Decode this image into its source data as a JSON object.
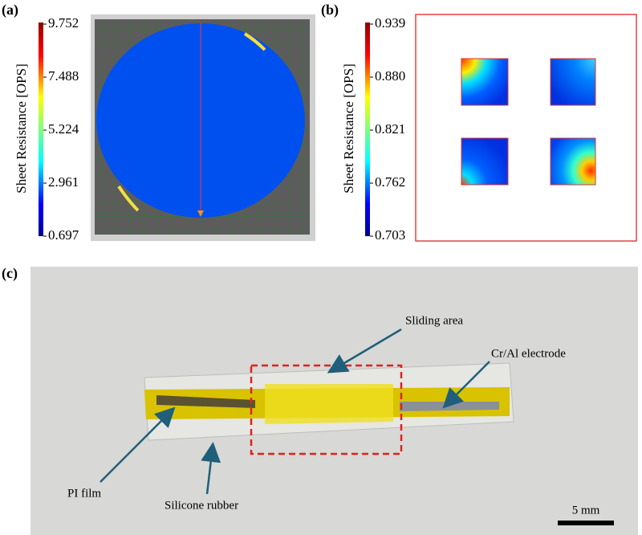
{
  "panel_a": {
    "label": "(a)",
    "axis_label": "Sheet Resistance [OPS]",
    "ticks": [
      "9.752",
      "7.488",
      "5.224",
      "2.961",
      "0.697"
    ]
  },
  "panel_b": {
    "label": "(b)",
    "axis_label": "Sheet Resistance [OPS]",
    "ticks": [
      "0.939",
      "0.880",
      "0.821",
      "0.762",
      "0.703"
    ]
  },
  "panel_c": {
    "label": "(c)",
    "annotations": [
      "Sliding area",
      "Cr/Al electrode",
      "PI film",
      "Silicone rubber"
    ],
    "scale_bar": "5 mm"
  }
}
